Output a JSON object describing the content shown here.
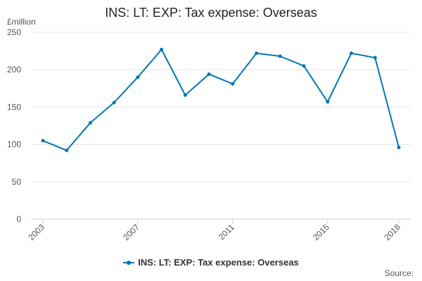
{
  "chart_data": {
    "type": "line",
    "title": "INS: LT: EXP: Tax expense: Overseas",
    "ylabel": "£million",
    "xlabel": "",
    "ylim": [
      0,
      250
    ],
    "yticks": [
      0,
      50,
      100,
      150,
      200,
      250
    ],
    "xticks": [
      2003,
      2007,
      2011,
      2015,
      2018
    ],
    "grid": true,
    "legend_position": "bottom",
    "color": "#0077b6",
    "series": [
      {
        "name": "INS: LT: EXP: Tax expense: Overseas",
        "x": [
          2003,
          2004,
          2005,
          2006,
          2007,
          2008,
          2009,
          2010,
          2011,
          2012,
          2013,
          2014,
          2015,
          2016,
          2017,
          2018
        ],
        "values": [
          105,
          92,
          129,
          156,
          190,
          227,
          166,
          194,
          181,
          222,
          218,
          205,
          157,
          222,
          216,
          96
        ]
      }
    ]
  },
  "source_label": "Source:"
}
